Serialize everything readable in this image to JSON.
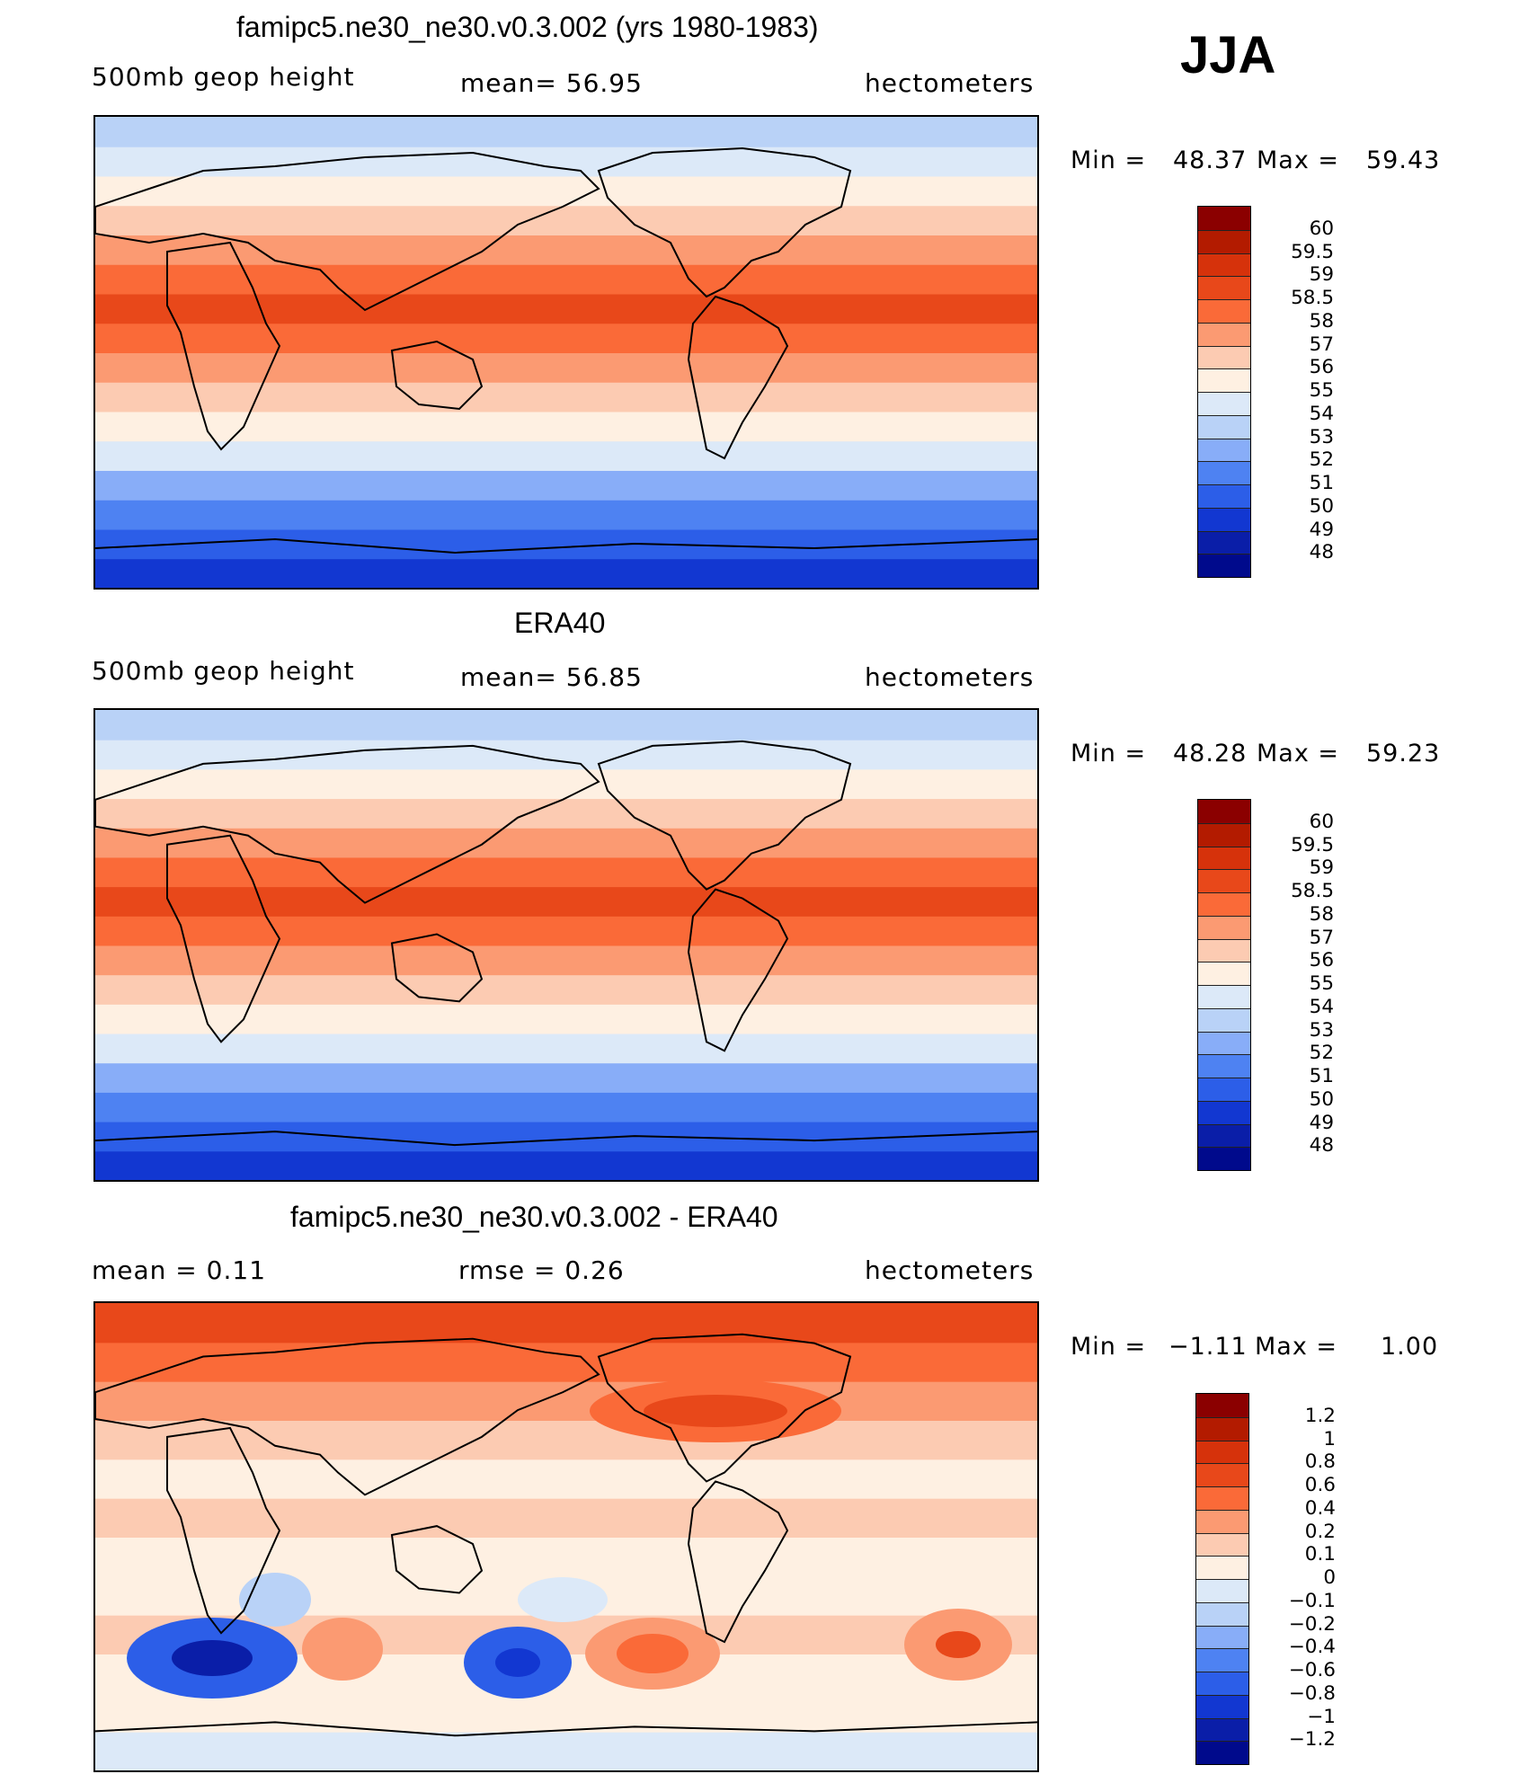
{
  "season": "JJA",
  "land_color": "#000000",
  "panels": [
    {
      "title": "famipc5.ne30_ne30.v0.3.002 (yrs 1980-1983)",
      "left_label": "500mb geop height",
      "center_label": "mean=   56.95",
      "right_label": "hectometers",
      "min_label": "Min =",
      "min_value": "48.37",
      "max_label": "Max =",
      "max_value": "59.43",
      "colorbar": {
        "labels": [
          "60",
          "59.5",
          "59",
          "58.5",
          "58",
          "57",
          "56",
          "55",
          "54",
          "53",
          "52",
          "51",
          "50",
          "49",
          "48"
        ],
        "colors": [
          "#8b0000",
          "#b31b00",
          "#d6320b",
          "#e8481a",
          "#fa6a38",
          "#fb9a72",
          "#fccbb2",
          "#fef0e2",
          "#dce9f8",
          "#b9d2f7",
          "#88adf8",
          "#4e82f2",
          "#2c5ee8",
          "#1237d1",
          "#0a1ea8",
          "#000a8c"
        ]
      },
      "bands": [
        "#1237d1",
        "#2c5ee8",
        "#4e82f2",
        "#88adf8",
        "#dce9f8",
        "#fef0e2",
        "#fccbb2",
        "#fb9a72",
        "#fa6a38",
        "#e8481a",
        "#fa6a38",
        "#fb9a72",
        "#fccbb2",
        "#fef0e2",
        "#dce9f8",
        "#b9d2f7"
      ]
    },
    {
      "title": "ERA40",
      "left_label": "500mb geop height",
      "center_label": "mean=   56.85",
      "right_label": "hectometers",
      "min_label": "Min =",
      "min_value": "48.28",
      "max_label": "Max =",
      "max_value": "59.23",
      "colorbar": {
        "labels": [
          "60",
          "59.5",
          "59",
          "58.5",
          "58",
          "57",
          "56",
          "55",
          "54",
          "53",
          "52",
          "51",
          "50",
          "49",
          "48"
        ],
        "colors": [
          "#8b0000",
          "#b31b00",
          "#d6320b",
          "#e8481a",
          "#fa6a38",
          "#fb9a72",
          "#fccbb2",
          "#fef0e2",
          "#dce9f8",
          "#b9d2f7",
          "#88adf8",
          "#4e82f2",
          "#2c5ee8",
          "#1237d1",
          "#0a1ea8",
          "#000a8c"
        ]
      },
      "bands": [
        "#1237d1",
        "#2c5ee8",
        "#4e82f2",
        "#88adf8",
        "#dce9f8",
        "#fef0e2",
        "#fccbb2",
        "#fb9a72",
        "#fa6a38",
        "#e8481a",
        "#fa6a38",
        "#fb9a72",
        "#fccbb2",
        "#fef0e2",
        "#dce9f8",
        "#b9d2f7"
      ]
    },
    {
      "title": "famipc5.ne30_ne30.v0.3.002 - ERA40",
      "left_label": "mean =     0.11",
      "center_label": "rmse =     0.26",
      "right_label": "hectometers",
      "min_label": "Min =",
      "min_value": "−1.11",
      "max_label": "Max =",
      "max_value": "1.00",
      "colorbar": {
        "labels": [
          "1.2",
          "1",
          "0.8",
          "0.6",
          "0.4",
          "0.2",
          "0.1",
          "0",
          "−0.1",
          "−0.2",
          "−0.4",
          "−0.6",
          "−0.8",
          "−1",
          "−1.2"
        ],
        "colors": [
          "#8b0000",
          "#b31b00",
          "#d6320b",
          "#e8481a",
          "#fa6a38",
          "#fb9a72",
          "#fccbb2",
          "#fef0e2",
          "#dce9f8",
          "#b9d2f7",
          "#88adf8",
          "#4e82f2",
          "#2c5ee8",
          "#1237d1",
          "#0a1ea8",
          "#000a8c"
        ]
      },
      "bands": [
        "#dce9f8",
        "#fef0e2",
        "#fef0e2",
        "#fccbb2",
        "#fef0e2",
        "#fef0e2",
        "#fccbb2",
        "#fef0e2",
        "#fccbb2",
        "#fb9a72",
        "#fa6a38",
        "#e8481a"
      ]
    }
  ]
}
